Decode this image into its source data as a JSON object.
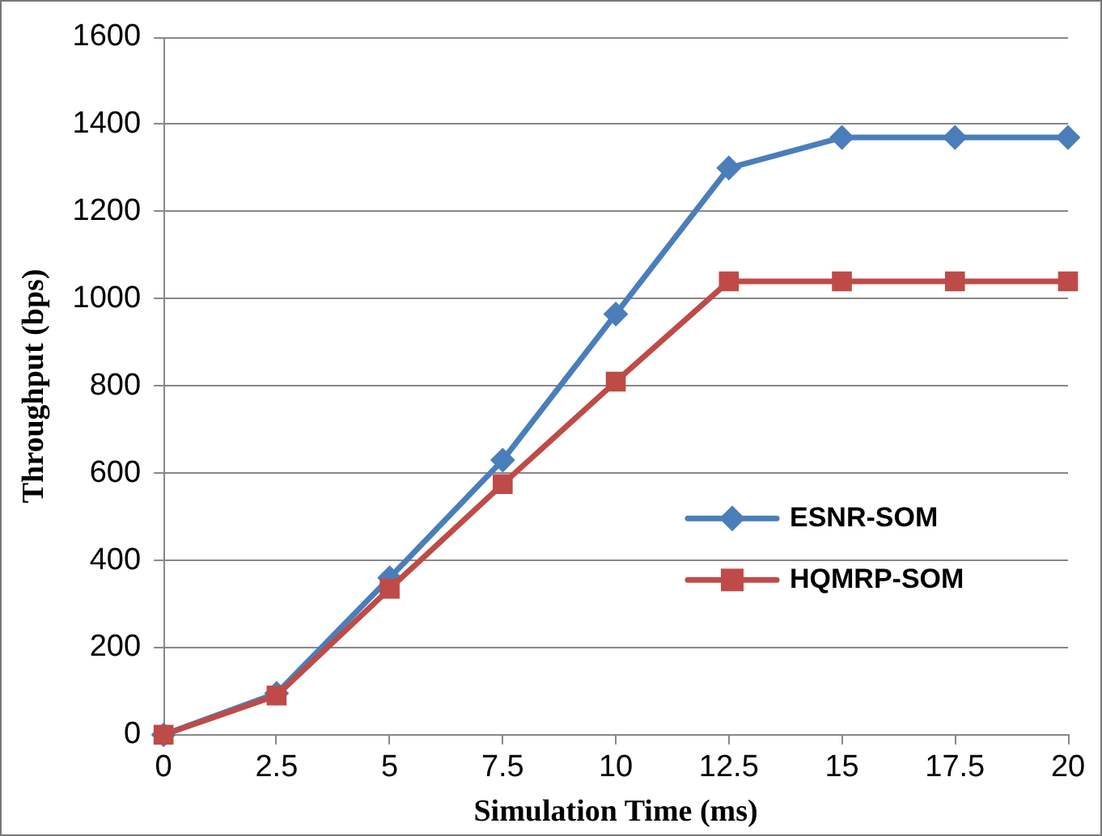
{
  "chart_data": {
    "type": "line",
    "xlabel": "Simulation Time (ms)",
    "ylabel": "Throughput (bps)",
    "x": [
      0,
      2.5,
      5,
      7.5,
      10,
      12.5,
      15,
      17.5,
      20
    ],
    "series": [
      {
        "name": "ESNR-SOM",
        "color": "#4a7ebb",
        "marker": "diamond",
        "values": [
          0,
          95,
          360,
          630,
          965,
          1300,
          1370,
          1370,
          1370
        ]
      },
      {
        "name": "HQMRP-SOM",
        "color": "#be4b48",
        "marker": "square",
        "values": [
          0,
          90,
          335,
          575,
          810,
          1040,
          1040,
          1040,
          1040
        ]
      }
    ],
    "xlim": [
      0,
      20
    ],
    "xticks": [
      0,
      2.5,
      5,
      7.5,
      10,
      12.5,
      15,
      17.5,
      20
    ],
    "ylim": [
      0,
      1600
    ],
    "yticks": [
      0,
      200,
      400,
      600,
      800,
      1000,
      1200,
      1400,
      1600
    ],
    "grid": "y",
    "legend": "right"
  }
}
